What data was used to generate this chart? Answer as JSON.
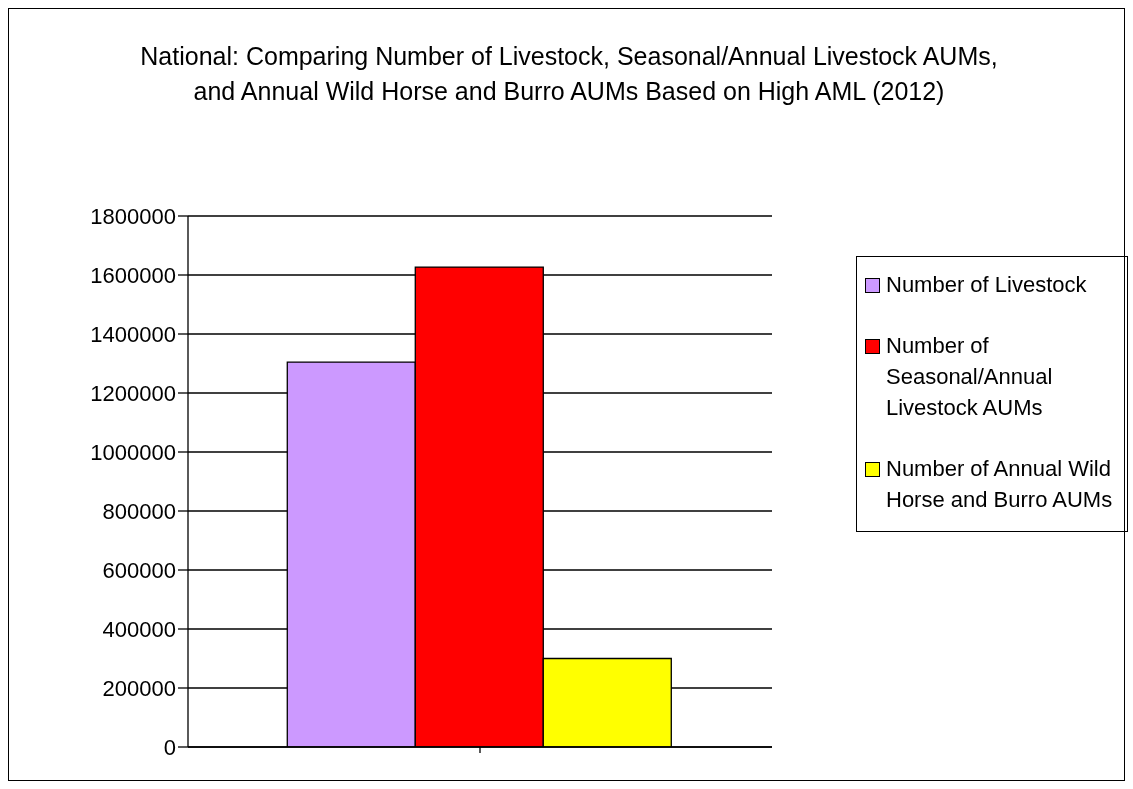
{
  "chart_data": {
    "type": "bar",
    "title": "National: Comparing Number of Livestock, Seasonal/Annual Livestock AUMs, and Annual Wild Horse and Burro AUMs Based on High AML (2012)",
    "categories": [
      null
    ],
    "series": [
      {
        "name": "Number of Livestock",
        "color": "#cc99ff",
        "values": [
          1305000
        ]
      },
      {
        "name": "Number of Seasonal/Annual Livestock AUMs",
        "color": "#ff0000",
        "values": [
          1627000
        ]
      },
      {
        "name": "Number of Annual Wild Horse and Burro AUMs",
        "color": "#ffff00",
        "values": [
          300000
        ]
      }
    ],
    "ylim": [
      0,
      1800000
    ],
    "yticks": [
      0,
      200000,
      400000,
      600000,
      800000,
      1000000,
      1200000,
      1400000,
      1600000,
      1800000
    ],
    "grid": "y",
    "legend": "right"
  }
}
